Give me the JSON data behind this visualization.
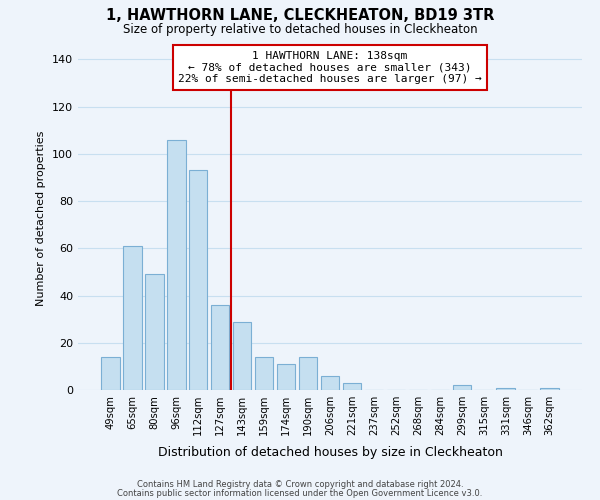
{
  "title": "1, HAWTHORN LANE, CLECKHEATON, BD19 3TR",
  "subtitle": "Size of property relative to detached houses in Cleckheaton",
  "xlabel": "Distribution of detached houses by size in Cleckheaton",
  "ylabel": "Number of detached properties",
  "bar_labels": [
    "49sqm",
    "65sqm",
    "80sqm",
    "96sqm",
    "112sqm",
    "127sqm",
    "143sqm",
    "159sqm",
    "174sqm",
    "190sqm",
    "206sqm",
    "221sqm",
    "237sqm",
    "252sqm",
    "268sqm",
    "284sqm",
    "299sqm",
    "315sqm",
    "331sqm",
    "346sqm",
    "362sqm"
  ],
  "bar_values": [
    14,
    61,
    49,
    106,
    93,
    36,
    29,
    14,
    11,
    14,
    6,
    3,
    0,
    0,
    0,
    0,
    2,
    0,
    1,
    0,
    1
  ],
  "bar_color": "#c5dff0",
  "bar_edge_color": "#7bafd4",
  "vline_x_index": 6,
  "vline_color": "#cc0000",
  "annotation_lines": [
    "1 HAWTHORN LANE: 138sqm",
    "← 78% of detached houses are smaller (343)",
    "22% of semi-detached houses are larger (97) →"
  ],
  "annotation_box_color": "#ffffff",
  "annotation_box_edge": "#cc0000",
  "ylim": [
    0,
    145
  ],
  "yticks": [
    0,
    20,
    40,
    60,
    80,
    100,
    120,
    140
  ],
  "footer_line1": "Contains HM Land Registry data © Crown copyright and database right 2024.",
  "footer_line2": "Contains public sector information licensed under the Open Government Licence v3.0.",
  "bg_color": "#eef4fb",
  "grid_color": "#c8dff0"
}
